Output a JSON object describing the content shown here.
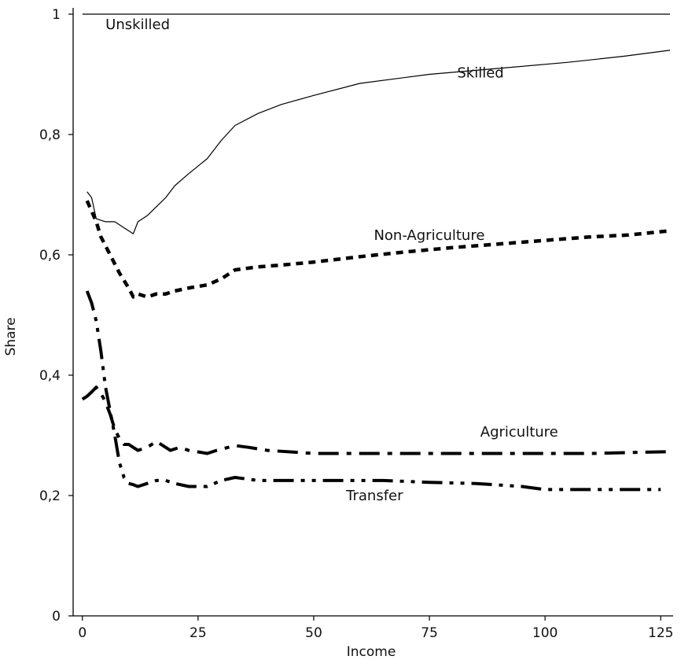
{
  "chart_data": {
    "type": "line",
    "title": "",
    "xlabel": "Income",
    "ylabel": "Share",
    "xlim": [
      -2,
      127
    ],
    "ylim": [
      0,
      1.0
    ],
    "xticks": [
      0,
      25,
      50,
      75,
      100,
      125
    ],
    "xtick_labels": [
      "0",
      "25",
      "50",
      "75",
      "100",
      "125"
    ],
    "yticks": [
      0,
      0.2,
      0.4,
      0.6,
      0.8,
      1.0
    ],
    "ytick_labels": [
      "0",
      "0,2",
      "0,4",
      "0,6",
      "0,8",
      "1"
    ],
    "grid": false,
    "series": [
      {
        "name": "Unskilled",
        "style": "solid-thin",
        "color": "#000000",
        "x": [
          0,
          127
        ],
        "y": [
          1.0,
          1.0
        ]
      },
      {
        "name": "Skilled",
        "style": "solid-thin",
        "color": "#000000",
        "x": [
          1,
          2,
          3,
          5,
          7,
          9,
          10,
          11,
          12,
          14,
          16,
          18,
          20,
          23,
          27,
          30,
          33,
          38,
          43,
          50,
          60,
          75,
          90,
          105,
          117,
          127
        ],
        "y": [
          0.705,
          0.695,
          0.66,
          0.655,
          0.655,
          0.645,
          0.64,
          0.635,
          0.655,
          0.665,
          0.68,
          0.695,
          0.715,
          0.735,
          0.76,
          0.79,
          0.815,
          0.835,
          0.85,
          0.865,
          0.885,
          0.9,
          0.91,
          0.92,
          0.93,
          0.94
        ]
      },
      {
        "name": "Non-Agriculture",
        "style": "dotted",
        "color": "#000000",
        "x": [
          1,
          3,
          4,
          6,
          8,
          10,
          11,
          12,
          14,
          16,
          18,
          20,
          23,
          27,
          30,
          33,
          38,
          43,
          50,
          60,
          70,
          80,
          90,
          100,
          110,
          118,
          127
        ],
        "y": [
          0.69,
          0.655,
          0.63,
          0.6,
          0.57,
          0.545,
          0.53,
          0.535,
          0.53,
          0.535,
          0.535,
          0.54,
          0.545,
          0.55,
          0.56,
          0.575,
          0.58,
          0.583,
          0.588,
          0.597,
          0.605,
          0.612,
          0.618,
          0.624,
          0.63,
          0.633,
          0.64
        ]
      },
      {
        "name": "Agriculture",
        "style": "dash-dot",
        "color": "#000000",
        "x": [
          0,
          1,
          2,
          3,
          4,
          5,
          6,
          7,
          8,
          9,
          10,
          11,
          12,
          14,
          16,
          17,
          19,
          21,
          23,
          27,
          29,
          33,
          36,
          40,
          50,
          60,
          70,
          80,
          90,
          100,
          110,
          127
        ],
        "y": [
          0.36,
          0.365,
          0.372,
          0.38,
          0.37,
          0.355,
          0.335,
          0.31,
          0.295,
          0.285,
          0.285,
          0.28,
          0.275,
          0.28,
          0.29,
          0.285,
          0.275,
          0.28,
          0.275,
          0.27,
          0.275,
          0.283,
          0.28,
          0.275,
          0.27,
          0.27,
          0.27,
          0.27,
          0.27,
          0.27,
          0.27,
          0.273
        ]
      },
      {
        "name": "Transfer",
        "style": "dash-dot-dot",
        "color": "#000000",
        "x": [
          1,
          2,
          3,
          4,
          5,
          6,
          7,
          8,
          9,
          10,
          11,
          12,
          14,
          16,
          18,
          20,
          23,
          27,
          30,
          33,
          38,
          45,
          55,
          65,
          75,
          85,
          95,
          100,
          110,
          118,
          125
        ],
        "y": [
          0.54,
          0.52,
          0.49,
          0.44,
          0.38,
          0.34,
          0.3,
          0.255,
          0.23,
          0.22,
          0.218,
          0.215,
          0.22,
          0.225,
          0.225,
          0.22,
          0.215,
          0.215,
          0.225,
          0.23,
          0.225,
          0.225,
          0.225,
          0.225,
          0.222,
          0.22,
          0.215,
          0.21,
          0.21,
          0.21,
          0.21
        ]
      }
    ],
    "annotations": [
      {
        "text": "Unskilled",
        "x": 5,
        "y": 0.975
      },
      {
        "text": "Skilled",
        "x": 81,
        "y": 0.895
      },
      {
        "text": "Non-Agriculture",
        "x": 63,
        "y": 0.625
      },
      {
        "text": "Agriculture",
        "x": 86,
        "y": 0.298
      },
      {
        "text": "Transfer",
        "x": 57,
        "y": 0.192
      }
    ]
  }
}
